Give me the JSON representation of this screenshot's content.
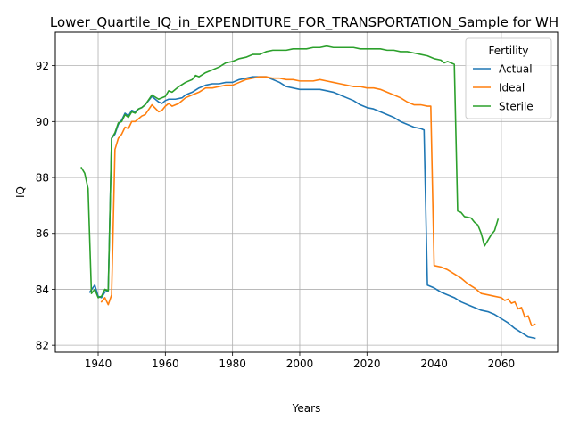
{
  "chart_data": {
    "type": "line",
    "title": "Lower_Quartile_IQ_in_EXPENDITURE_FOR_TRANSPORTATION_Sample for WH",
    "xlabel": "Years",
    "ylabel": "IQ",
    "xlim": [
      1927.25,
      2076.75
    ],
    "ylim": [
      81.75,
      93.2
    ],
    "xticks": [
      1940,
      1960,
      1980,
      2000,
      2020,
      2040,
      2060
    ],
    "yticks": [
      82,
      84,
      86,
      88,
      90,
      92
    ],
    "grid": true,
    "legend": {
      "title": "Fertility",
      "placement": "top-right"
    },
    "series": [
      {
        "name": "Actual",
        "color": "#1f77b4",
        "points": [
          [
            1937.5,
            83.9
          ],
          [
            1939,
            84.15
          ],
          [
            1940,
            83.75
          ],
          [
            1941,
            83.7
          ],
          [
            1942,
            83.9
          ],
          [
            1943,
            83.95
          ],
          [
            1944,
            89.4
          ],
          [
            1945,
            89.55
          ],
          [
            1946,
            89.9
          ],
          [
            1947,
            90.05
          ],
          [
            1948,
            90.3
          ],
          [
            1949,
            90.2
          ],
          [
            1950,
            90.4
          ],
          [
            1951,
            90.35
          ],
          [
            1952,
            90.45
          ],
          [
            1953,
            90.5
          ],
          [
            1954,
            90.6
          ],
          [
            1956,
            90.9
          ],
          [
            1958,
            90.7
          ],
          [
            1959,
            90.65
          ],
          [
            1960,
            90.75
          ],
          [
            1961,
            90.8
          ],
          [
            1963,
            90.8
          ],
          [
            1965,
            90.85
          ],
          [
            1966,
            90.95
          ],
          [
            1968,
            91.05
          ],
          [
            1970,
            91.2
          ],
          [
            1972,
            91.3
          ],
          [
            1974,
            91.35
          ],
          [
            1976,
            91.35
          ],
          [
            1978,
            91.4
          ],
          [
            1980,
            91.4
          ],
          [
            1982,
            91.5
          ],
          [
            1984,
            91.55
          ],
          [
            1986,
            91.6
          ],
          [
            1988,
            91.6
          ],
          [
            1990,
            91.6
          ],
          [
            1992,
            91.5
          ],
          [
            1994,
            91.4
          ],
          [
            1996,
            91.25
          ],
          [
            1998,
            91.2
          ],
          [
            2000,
            91.15
          ],
          [
            2002,
            91.15
          ],
          [
            2004,
            91.15
          ],
          [
            2006,
            91.15
          ],
          [
            2008,
            91.1
          ],
          [
            2010,
            91.05
          ],
          [
            2012,
            90.95
          ],
          [
            2014,
            90.85
          ],
          [
            2016,
            90.75
          ],
          [
            2018,
            90.6
          ],
          [
            2020,
            90.5
          ],
          [
            2022,
            90.45
          ],
          [
            2024,
            90.35
          ],
          [
            2026,
            90.25
          ],
          [
            2028,
            90.15
          ],
          [
            2030,
            90.0
          ],
          [
            2032,
            89.9
          ],
          [
            2034,
            89.8
          ],
          [
            2036,
            89.75
          ],
          [
            2037,
            89.7
          ],
          [
            2038,
            84.15
          ],
          [
            2040,
            84.05
          ],
          [
            2042,
            83.9
          ],
          [
            2044,
            83.8
          ],
          [
            2046,
            83.7
          ],
          [
            2048,
            83.55
          ],
          [
            2050,
            83.45
          ],
          [
            2052,
            83.35
          ],
          [
            2054,
            83.25
          ],
          [
            2056,
            83.2
          ],
          [
            2058,
            83.1
          ],
          [
            2060,
            82.95
          ],
          [
            2062,
            82.8
          ],
          [
            2064,
            82.6
          ],
          [
            2066,
            82.45
          ],
          [
            2068,
            82.3
          ],
          [
            2070,
            82.25
          ]
        ]
      },
      {
        "name": "Ideal",
        "color": "#ff7f0e",
        "points": [
          [
            1941,
            83.55
          ],
          [
            1942,
            83.7
          ],
          [
            1943,
            83.45
          ],
          [
            1944,
            83.8
          ],
          [
            1945,
            89.0
          ],
          [
            1946,
            89.4
          ],
          [
            1947,
            89.55
          ],
          [
            1948,
            89.8
          ],
          [
            1949,
            89.75
          ],
          [
            1950,
            90.0
          ],
          [
            1951,
            90.0
          ],
          [
            1952,
            90.1
          ],
          [
            1953,
            90.2
          ],
          [
            1954,
            90.25
          ],
          [
            1956,
            90.6
          ],
          [
            1958,
            90.35
          ],
          [
            1959,
            90.4
          ],
          [
            1960,
            90.55
          ],
          [
            1961,
            90.65
          ],
          [
            1962,
            90.55
          ],
          [
            1964,
            90.65
          ],
          [
            1966,
            90.85
          ],
          [
            1968,
            90.95
          ],
          [
            1970,
            91.05
          ],
          [
            1972,
            91.2
          ],
          [
            1974,
            91.2
          ],
          [
            1976,
            91.25
          ],
          [
            1978,
            91.3
          ],
          [
            1980,
            91.3
          ],
          [
            1982,
            91.4
          ],
          [
            1984,
            91.5
          ],
          [
            1986,
            91.55
          ],
          [
            1988,
            91.6
          ],
          [
            1990,
            91.6
          ],
          [
            1992,
            91.55
          ],
          [
            1994,
            91.55
          ],
          [
            1996,
            91.5
          ],
          [
            1998,
            91.5
          ],
          [
            2000,
            91.45
          ],
          [
            2002,
            91.45
          ],
          [
            2004,
            91.45
          ],
          [
            2006,
            91.5
          ],
          [
            2008,
            91.45
          ],
          [
            2010,
            91.4
          ],
          [
            2012,
            91.35
          ],
          [
            2014,
            91.3
          ],
          [
            2016,
            91.25
          ],
          [
            2018,
            91.25
          ],
          [
            2020,
            91.2
          ],
          [
            2022,
            91.2
          ],
          [
            2024,
            91.15
          ],
          [
            2026,
            91.05
          ],
          [
            2028,
            90.95
          ],
          [
            2030,
            90.85
          ],
          [
            2032,
            90.7
          ],
          [
            2034,
            90.6
          ],
          [
            2036,
            90.6
          ],
          [
            2038,
            90.55
          ],
          [
            2039,
            90.55
          ],
          [
            2040,
            84.85
          ],
          [
            2042,
            84.8
          ],
          [
            2044,
            84.7
          ],
          [
            2046,
            84.55
          ],
          [
            2048,
            84.4
          ],
          [
            2050,
            84.2
          ],
          [
            2052,
            84.05
          ],
          [
            2054,
            83.85
          ],
          [
            2056,
            83.8
          ],
          [
            2058,
            83.75
          ],
          [
            2060,
            83.7
          ],
          [
            2061,
            83.6
          ],
          [
            2062,
            83.65
          ],
          [
            2063,
            83.5
          ],
          [
            2064,
            83.55
          ],
          [
            2065,
            83.3
          ],
          [
            2066,
            83.35
          ],
          [
            2067,
            83.0
          ],
          [
            2068,
            83.05
          ],
          [
            2069,
            82.7
          ],
          [
            2070,
            82.75
          ]
        ]
      },
      {
        "name": "Sterile",
        "color": "#2ca02c",
        "points": [
          [
            1935,
            88.35
          ],
          [
            1936,
            88.15
          ],
          [
            1937,
            87.6
          ],
          [
            1938,
            83.85
          ],
          [
            1939,
            84.0
          ],
          [
            1940,
            83.7
          ],
          [
            1941,
            83.75
          ],
          [
            1942,
            84.0
          ],
          [
            1943,
            83.95
          ],
          [
            1944,
            89.4
          ],
          [
            1945,
            89.6
          ],
          [
            1946,
            89.95
          ],
          [
            1947,
            90.0
          ],
          [
            1948,
            90.25
          ],
          [
            1949,
            90.15
          ],
          [
            1950,
            90.35
          ],
          [
            1951,
            90.3
          ],
          [
            1952,
            90.45
          ],
          [
            1953,
            90.5
          ],
          [
            1954,
            90.6
          ],
          [
            1956,
            90.95
          ],
          [
            1958,
            90.8
          ],
          [
            1960,
            90.9
          ],
          [
            1961,
            91.1
          ],
          [
            1962,
            91.05
          ],
          [
            1964,
            91.25
          ],
          [
            1966,
            91.4
          ],
          [
            1968,
            91.5
          ],
          [
            1969,
            91.65
          ],
          [
            1970,
            91.6
          ],
          [
            1972,
            91.75
          ],
          [
            1974,
            91.85
          ],
          [
            1976,
            91.95
          ],
          [
            1978,
            92.1
          ],
          [
            1980,
            92.15
          ],
          [
            1982,
            92.25
          ],
          [
            1984,
            92.3
          ],
          [
            1986,
            92.4
          ],
          [
            1988,
            92.4
          ],
          [
            1990,
            92.5
          ],
          [
            1992,
            92.55
          ],
          [
            1994,
            92.55
          ],
          [
            1996,
            92.55
          ],
          [
            1998,
            92.6
          ],
          [
            2000,
            92.6
          ],
          [
            2002,
            92.6
          ],
          [
            2004,
            92.65
          ],
          [
            2006,
            92.65
          ],
          [
            2008,
            92.7
          ],
          [
            2010,
            92.65
          ],
          [
            2012,
            92.65
          ],
          [
            2014,
            92.65
          ],
          [
            2016,
            92.65
          ],
          [
            2018,
            92.6
          ],
          [
            2020,
            92.6
          ],
          [
            2022,
            92.6
          ],
          [
            2024,
            92.6
          ],
          [
            2026,
            92.55
          ],
          [
            2028,
            92.55
          ],
          [
            2030,
            92.5
          ],
          [
            2032,
            92.5
          ],
          [
            2034,
            92.45
          ],
          [
            2036,
            92.4
          ],
          [
            2038,
            92.35
          ],
          [
            2040,
            92.25
          ],
          [
            2042,
            92.2
          ],
          [
            2043,
            92.1
          ],
          [
            2044,
            92.15
          ],
          [
            2045,
            92.1
          ],
          [
            2046,
            92.05
          ],
          [
            2047,
            86.8
          ],
          [
            2048,
            86.75
          ],
          [
            2049,
            86.6
          ],
          [
            2051,
            86.55
          ],
          [
            2052,
            86.4
          ],
          [
            2053,
            86.3
          ],
          [
            2054,
            86.0
          ],
          [
            2055,
            85.55
          ],
          [
            2056,
            85.75
          ],
          [
            2057,
            85.95
          ],
          [
            2058,
            86.1
          ],
          [
            2059,
            86.5
          ]
        ]
      }
    ]
  }
}
